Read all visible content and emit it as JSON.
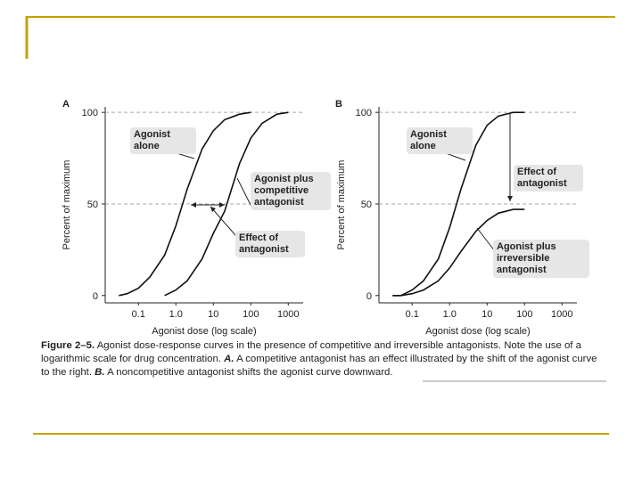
{
  "chart_data": [
    {
      "type": "line",
      "panel": "A",
      "xlabel": "Agonist dose (log scale)",
      "ylabel": "Percent of maximum",
      "x": [
        0.03,
        0.05,
        0.1,
        0.2,
        0.5,
        1,
        2,
        5,
        10,
        20,
        50,
        100,
        200,
        500,
        1000
      ],
      "series": [
        {
          "name": "Agonist alone",
          "color": "#111111",
          "values": [
            0,
            1,
            4,
            10,
            22,
            38,
            58,
            80,
            90,
            96,
            99,
            100,
            null,
            null,
            null
          ]
        },
        {
          "name": "Agonist plus competitive antagonist",
          "color": "#111111",
          "values": [
            null,
            null,
            null,
            null,
            0,
            3,
            8,
            20,
            34,
            46,
            72,
            86,
            94,
            99,
            100
          ]
        }
      ],
      "annotations": [
        "Effect of antagonist"
      ],
      "xscale": "log",
      "xlim": [
        0.013,
        2500
      ],
      "xticks": [
        0.1,
        {
          "value": 1,
          "label": "1.0"
        },
        10,
        100,
        1000
      ],
      "ylim": [
        -4,
        103
      ],
      "yticks": [
        0,
        50,
        100
      ],
      "grid": true
    },
    {
      "type": "line",
      "panel": "B",
      "xlabel": "Agonist dose (log scale)",
      "ylabel": "Percent of maximum",
      "x": [
        0.03,
        0.05,
        0.1,
        0.2,
        0.5,
        1,
        2,
        5,
        10,
        20,
        50,
        100
      ],
      "series": [
        {
          "name": "Agonist alone",
          "color": "#111111",
          "values": [
            0,
            0,
            3,
            8,
            20,
            37,
            58,
            82,
            93,
            98,
            100,
            100
          ]
        },
        {
          "name": "Agonist plus irreversible antagonist",
          "color": "#111111",
          "values": [
            0,
            0,
            1,
            3,
            8,
            15,
            24,
            35,
            41,
            45,
            47,
            47
          ]
        }
      ],
      "annotations": [
        "Effect of antagonist"
      ],
      "xscale": "log",
      "xlim": [
        0.013,
        2500
      ],
      "xticks": [
        0.1,
        {
          "value": 1,
          "label": "1.0"
        },
        10,
        100,
        1000
      ],
      "ylim": [
        -4,
        103
      ],
      "yticks": [
        0,
        50,
        100
      ],
      "grid": true
    }
  ],
  "caption": {
    "label": "Figure 2–5.",
    "text1": "Agonist dose-response curves in the presence of competitive and irreversible antagonists. Note the use of a logarithmic scale for drug concentration.",
    "a_label": "A.",
    "a_text": "A competitive antagonist has an effect illustrated by the shift of the agonist curve to the right.",
    "b_label": "B.",
    "b_text": "A noncompetitive antagonist shifts the agonist curve downward."
  }
}
